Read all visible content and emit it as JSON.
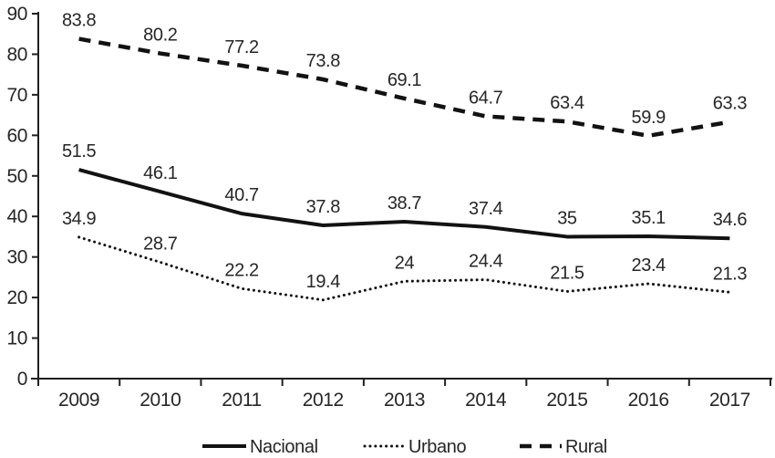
{
  "figure": {
    "background": "#ffffff",
    "line_color": "#121212",
    "axis_color": "#1f1f1f",
    "text_color": "#262626"
  },
  "chart_data": {
    "type": "line",
    "title": "",
    "xlabel": "",
    "ylabel": "",
    "x": [
      "2009",
      "2010",
      "2011",
      "2012",
      "2013",
      "2014",
      "2015",
      "2016",
      "2017"
    ],
    "series": [
      {
        "name": "Nacional",
        "style": "solid",
        "values": [
          51.5,
          46.1,
          40.7,
          37.8,
          38.7,
          37.4,
          35,
          35.1,
          34.6
        ]
      },
      {
        "name": "Urbano",
        "style": "dotted",
        "values": [
          34.9,
          28.7,
          22.2,
          19.4,
          24,
          24.4,
          21.5,
          23.4,
          21.3
        ]
      },
      {
        "name": "Rural",
        "style": "dashed",
        "values": [
          83.8,
          80.2,
          77.2,
          73.8,
          69.1,
          64.7,
          63.4,
          59.9,
          63.3
        ]
      }
    ],
    "ylim": [
      0,
      90
    ],
    "ytick_step": 10,
    "ytick_labels": [
      "0",
      "10",
      "20",
      "30",
      "40",
      "50",
      "60",
      "70",
      "80",
      "90"
    ],
    "grid": false,
    "data_labels": true,
    "legend_position": "bottom-center",
    "legend": [
      "Nacional",
      "Urbano",
      "Rural"
    ]
  }
}
